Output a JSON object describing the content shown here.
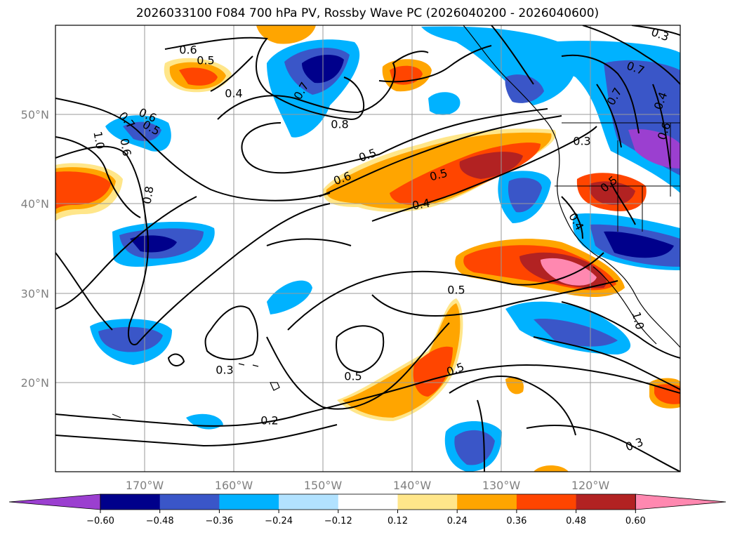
{
  "title": "2026033100 F084 700 hPa PV, Rossby Wave PC (2026040200 - 2026040600)",
  "map": {
    "lat_labels": [
      "50°N",
      "40°N",
      "30°N",
      "20°N"
    ],
    "lon_labels": [
      "170°W",
      "160°W",
      "150°W",
      "140°W",
      "130°W",
      "120°W"
    ],
    "gridlines": true
  },
  "contour_labels": [
    "0.6",
    "0.5",
    "0.4",
    "0.7",
    "0.8",
    "0.6",
    "0.7",
    "0.6",
    "1.0",
    "0.8",
    "0.5",
    "0.6",
    "0.5",
    "0.4",
    "0.3",
    "0.5",
    "0.4",
    "0.5",
    "0.5",
    "0.3",
    "0.5",
    "0.2",
    "0.3",
    "0.3",
    "0.7",
    "0.7",
    "0.4",
    "0.6",
    "1.0",
    "0.5"
  ],
  "colorbar": {
    "colors": [
      "#9b3fd0",
      "#00008b",
      "#3a56c8",
      "#00b2ff",
      "#b2e2ff",
      "#ffffff",
      "#ffe68a",
      "#ffa500",
      "#ff4500",
      "#b22222",
      "#ff88b0"
    ],
    "tick_labels": [
      "−0.60",
      "−0.48",
      "−0.36",
      "−0.24",
      "−0.12",
      "0.12",
      "0.24",
      "0.36",
      "0.48",
      "0.60"
    ]
  }
}
